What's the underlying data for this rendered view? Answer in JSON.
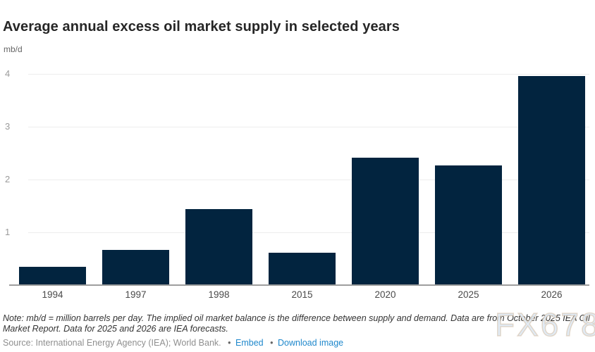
{
  "header": {
    "title": "Average annual excess oil market supply in selected years",
    "unit_label": "mb/d"
  },
  "chart_data": {
    "type": "bar",
    "title": "Average annual excess oil market supply in selected years",
    "categories": [
      "1994",
      "1997",
      "1998",
      "2015",
      "2020",
      "2025",
      "2026"
    ],
    "values": [
      0.35,
      0.67,
      1.44,
      0.62,
      2.41,
      2.27,
      3.96
    ],
    "xlabel": "",
    "ylabel": "mb/d",
    "ylim": [
      0,
      4.3
    ],
    "yticks": [
      1,
      2,
      3,
      4
    ],
    "grid": true,
    "legend": "none",
    "bar_color": "#02243f"
  },
  "footer": {
    "note_text": "Note: mb/d = million barrels per day. The implied oil market balance is the difference between supply and demand. Data are from October 2025 IEA Oil Market Report. Data for 2025 and 2026 are IEA forecasts.",
    "source_text": "Source: International Energy Agency (IEA); World Bank.",
    "bullet": "•",
    "embed_label": "Embed",
    "download_label": "Download image"
  },
  "watermark": {
    "text": "FX678"
  }
}
